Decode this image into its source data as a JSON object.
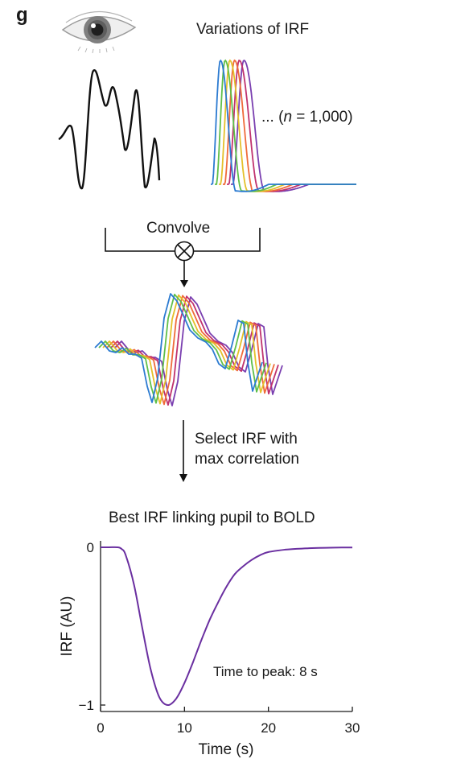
{
  "panel_letter": "g",
  "top": {
    "title": "Variations of IRF",
    "n_label_prefix": "... (",
    "n_label_var": "n",
    "n_label_suffix": " = 1,000)"
  },
  "convolve_label": "Convolve",
  "select": {
    "line1": "Select IRF with",
    "line2": "max correlation"
  },
  "irf_colors": [
    "#2c7bd1",
    "#5fbf4a",
    "#e4c02a",
    "#ef6b3a",
    "#c0326e",
    "#7a3fb0"
  ],
  "chart_data": {
    "type": "line",
    "title": "Best IRF linking pupil to BOLD",
    "xlabel": "Time (s)",
    "ylabel": "IRF (AU)",
    "xlim": [
      0,
      30
    ],
    "ylim": [
      -1,
      0
    ],
    "xticks": [
      "0",
      "10",
      "20",
      "30"
    ],
    "yticks": [
      "0",
      "−1"
    ],
    "annotation": "Time to peak: 8 s",
    "series_color": "#6a2fa0",
    "series": [
      {
        "x": [
          0,
          1,
          2,
          2.5,
          3,
          4,
          5,
          6,
          7,
          8,
          9,
          10,
          11,
          12,
          13,
          14,
          15,
          16,
          17,
          18,
          19,
          20,
          22,
          24,
          26,
          28,
          30
        ],
        "y": [
          0,
          0,
          0,
          -0.01,
          -0.05,
          -0.24,
          -0.52,
          -0.78,
          -0.95,
          -1.0,
          -0.96,
          -0.86,
          -0.73,
          -0.59,
          -0.46,
          -0.35,
          -0.25,
          -0.17,
          -0.12,
          -0.08,
          -0.05,
          -0.03,
          -0.015,
          -0.008,
          -0.004,
          -0.002,
          -0.001
        ]
      }
    ]
  }
}
